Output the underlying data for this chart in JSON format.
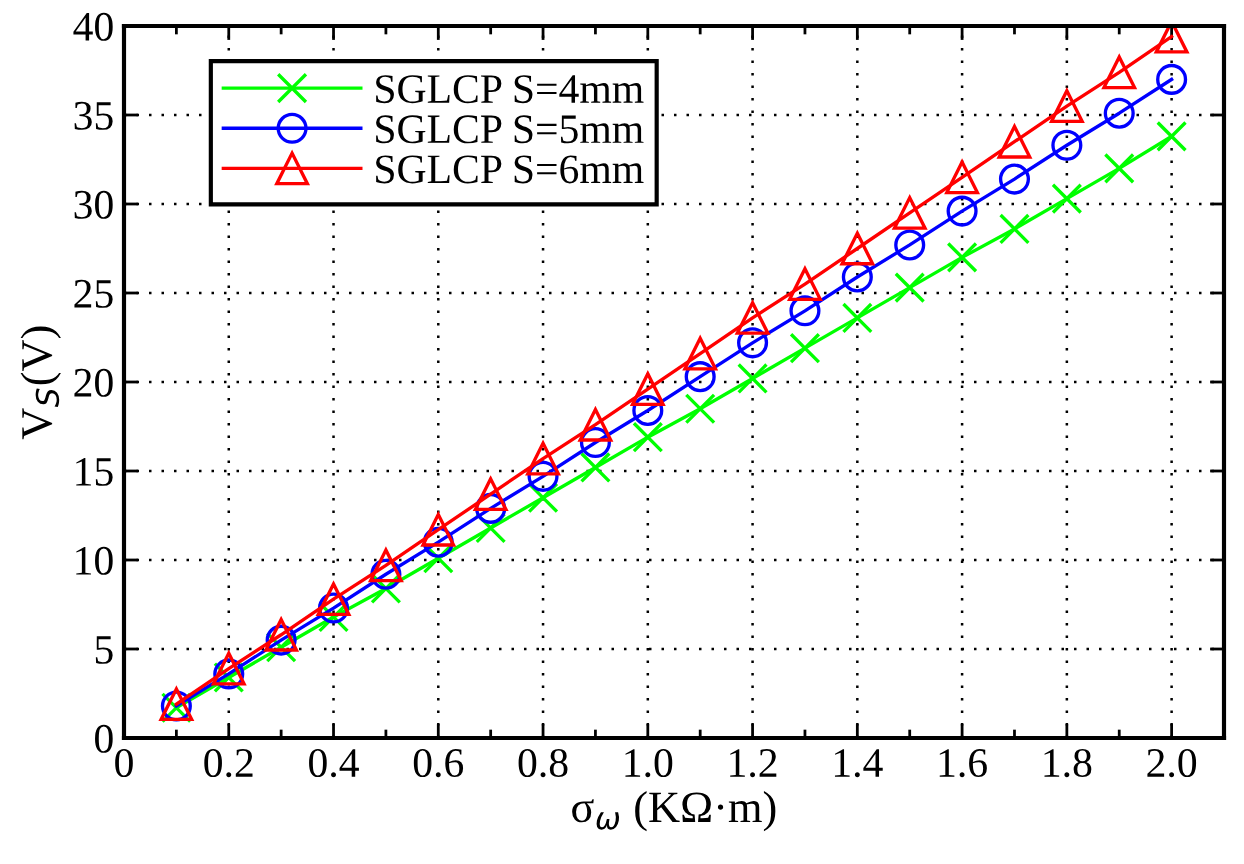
{
  "chart_data": {
    "type": "line",
    "xlabel": "σ$_{ω}$ (KΩ·m)",
    "ylabel": "V$_{S}$(V)",
    "x": [
      0.1,
      0.2,
      0.3,
      0.4,
      0.5,
      0.6,
      0.7,
      0.8,
      0.9,
      1.0,
      1.1,
      1.2,
      1.3,
      1.4,
      1.5,
      1.6,
      1.7,
      1.8,
      1.9,
      2.0
    ],
    "series": [
      {
        "name": "SGLCP S=4mm",
        "color": "#00ff00",
        "marker": "cross",
        "values": [
          1.7,
          3.4,
          5.1,
          6.8,
          8.4,
          10.1,
          11.8,
          13.5,
          15.2,
          16.9,
          18.5,
          20.2,
          21.9,
          23.6,
          25.3,
          27.0,
          28.6,
          30.3,
          32.0,
          33.8
        ]
      },
      {
        "name": "SGLCP S=5mm",
        "color": "#0000ff",
        "marker": "circle",
        "values": [
          1.8,
          3.6,
          5.5,
          7.3,
          9.2,
          11.0,
          12.9,
          14.7,
          16.6,
          18.4,
          20.3,
          22.2,
          24.0,
          25.9,
          27.7,
          29.6,
          31.4,
          33.3,
          35.1,
          37.0
        ]
      },
      {
        "name": "SGLCP S=6mm",
        "color": "#ff0000",
        "marker": "triangle",
        "values": [
          1.9,
          3.9,
          5.8,
          7.8,
          9.7,
          11.7,
          13.7,
          15.7,
          17.6,
          19.6,
          21.6,
          23.6,
          25.5,
          27.5,
          29.5,
          31.5,
          33.5,
          35.5,
          37.4,
          39.4
        ]
      }
    ],
    "xlim": [
      0,
      2.1
    ],
    "xticks": [
      0,
      {
        "value": 0.1,
        "label": null
      },
      0.2,
      {
        "value": 0.3,
        "label": null
      },
      0.4,
      {
        "value": 0.5,
        "label": null
      },
      0.6,
      {
        "value": 0.7,
        "label": null
      },
      0.8,
      {
        "value": 0.9,
        "label": null
      },
      {
        "value": 1.0,
        "label": "1.0"
      },
      {
        "value": 1.1,
        "label": null
      },
      1.2,
      {
        "value": 1.3,
        "label": null
      },
      1.4,
      {
        "value": 1.5,
        "label": null
      },
      1.6,
      {
        "value": 1.7,
        "label": null
      },
      1.8,
      {
        "value": 1.9,
        "label": null
      },
      {
        "value": 2.0,
        "label": "2.0"
      }
    ],
    "ylim": [
      0,
      40
    ],
    "yticks": [
      0,
      5,
      10,
      15,
      20,
      25,
      30,
      35,
      40
    ],
    "grid": true,
    "legend": "top left",
    "line_style": "solid"
  }
}
